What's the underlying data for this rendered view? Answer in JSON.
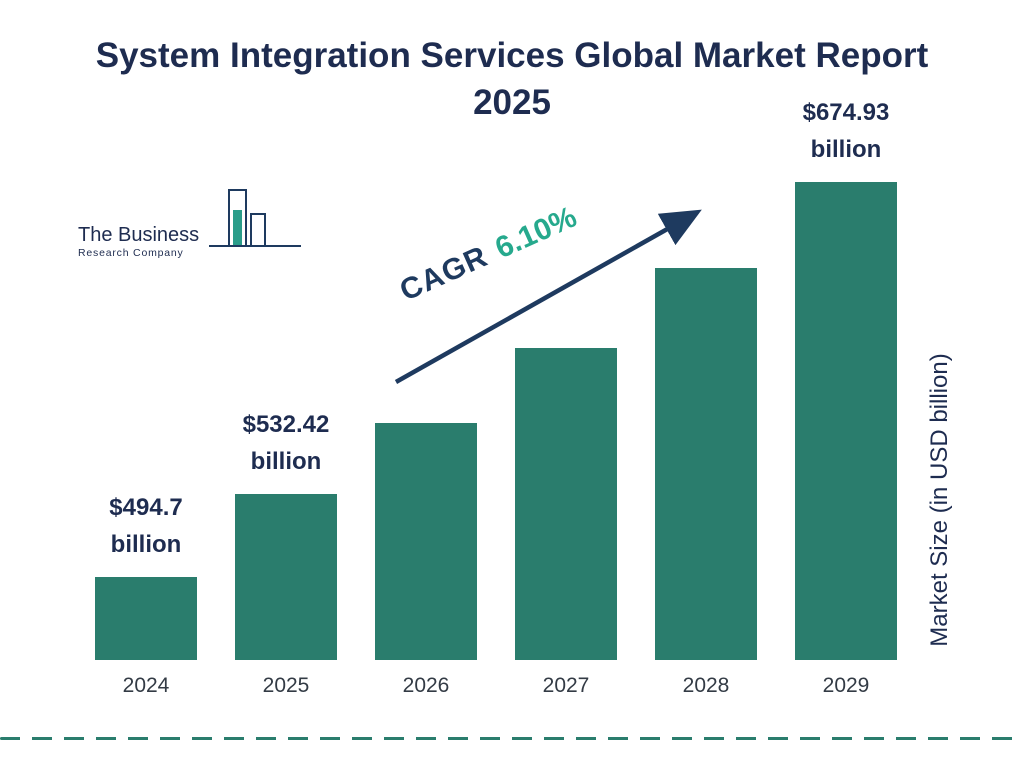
{
  "title": "System Integration Services Global Market Report 2025",
  "logo": {
    "line1": "The Business",
    "line2": "Research Company"
  },
  "cagr": {
    "prefix": "CAGR",
    "value": "6.10%"
  },
  "y_axis_label": "Market Size (in USD billion)",
  "colors": {
    "bar": "#2a7d6d",
    "navy": "#1e2c50",
    "teal_accent": "#26a98d"
  },
  "chart_data": {
    "type": "bar",
    "title": "System Integration Services Global Market Report 2025",
    "xlabel": "",
    "ylabel": "Market Size (in USD billion)",
    "categories": [
      "2024",
      "2025",
      "2026",
      "2027",
      "2028",
      "2029"
    ],
    "values": [
      494.7,
      532.42,
      565.0,
      599.4,
      635.9,
      674.93
    ],
    "data_labels": [
      [
        "$494.7",
        "billion"
      ],
      [
        "$532.42",
        "billion"
      ],
      null,
      null,
      null,
      [
        "$674.93",
        "billion"
      ]
    ],
    "annotations": [
      "CAGR 6.10%"
    ],
    "ylim": [
      450,
      700
    ],
    "grid": false,
    "legend_position": "none"
  }
}
